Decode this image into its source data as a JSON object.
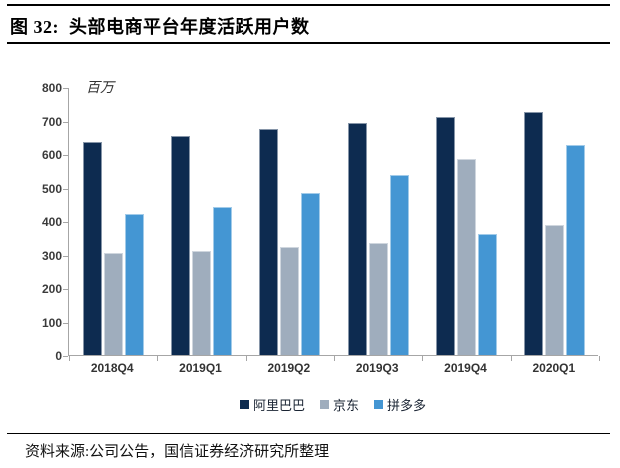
{
  "header": {
    "title": "图 32:  头部电商平台年度活跃用户数"
  },
  "chart_data": {
    "type": "bar",
    "title": "头部电商平台年度活跃用户数",
    "unit_label": "百万",
    "categories": [
      "2018Q4",
      "2019Q1",
      "2019Q2",
      "2019Q3",
      "2019Q4",
      "2020Q1"
    ],
    "series": [
      {
        "name": "阿里巴巴",
        "color": "#0d2b50",
        "values": [
          636,
          654,
          674,
          693,
          711,
          726
        ]
      },
      {
        "name": "京东",
        "color": "#9fadbd",
        "values": [
          305,
          310,
          321,
          334,
          585,
          387
        ]
      },
      {
        "name": "拼多多",
        "color": "#4496d3",
        "values": [
          420,
          443,
          483,
          536,
          362,
          628
        ]
      }
    ],
    "ylim": [
      0,
      800
    ],
    "yticks": [
      0,
      100,
      200,
      300,
      400,
      500,
      600,
      700,
      800
    ],
    "grid": false,
    "legend_position": "bottom",
    "axis_color": "#a6a6a6"
  },
  "footer": {
    "source_text": "资料来源:公司公告，国信证券经济研究所整理"
  }
}
